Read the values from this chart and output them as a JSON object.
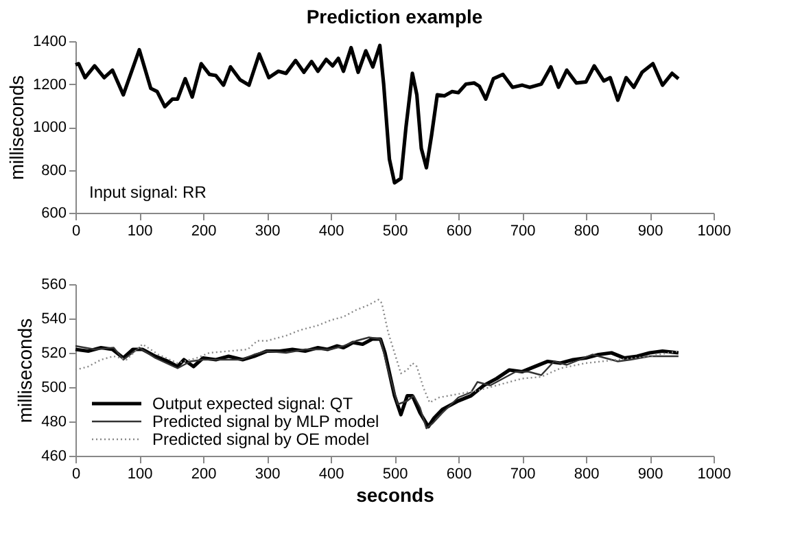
{
  "chart_data": [
    {
      "type": "line",
      "title": "Prediction example",
      "ylabel": "milliseconds",
      "annotations": [
        "Input signal: RR"
      ],
      "xlim": [
        0,
        1000
      ],
      "xticks": [
        0,
        100,
        200,
        300,
        400,
        500,
        600,
        700,
        800,
        900,
        1000
      ],
      "ylim": [
        600,
        1400
      ],
      "yticks": [
        600,
        800,
        1000,
        1200,
        1400
      ],
      "grid": false,
      "series": [
        {
          "color": "#000000",
          "line_style": "solid",
          "x": [
            0,
            5,
            15,
            30,
            45,
            58,
            75,
            100,
            118,
            128,
            140,
            152,
            160,
            172,
            183,
            197,
            210,
            220,
            232,
            243,
            258,
            272,
            288,
            303,
            318,
            330,
            345,
            358,
            370,
            380,
            393,
            403,
            412,
            420,
            432,
            443,
            455,
            466,
            477,
            483,
            492,
            500,
            510,
            518,
            528,
            535,
            542,
            550,
            558,
            567,
            578,
            590,
            600,
            612,
            625,
            633,
            643,
            655,
            670,
            685,
            700,
            712,
            730,
            745,
            757,
            770,
            785,
            800,
            813,
            828,
            838,
            850,
            863,
            875,
            888,
            905,
            920,
            935,
            945
          ],
          "values": [
            1290,
            1295,
            1230,
            1285,
            1230,
            1265,
            1150,
            1360,
            1180,
            1165,
            1095,
            1130,
            1130,
            1225,
            1140,
            1295,
            1245,
            1240,
            1195,
            1280,
            1220,
            1195,
            1340,
            1230,
            1260,
            1250,
            1310,
            1255,
            1305,
            1260,
            1315,
            1285,
            1320,
            1260,
            1370,
            1255,
            1355,
            1280,
            1380,
            1200,
            850,
            740,
            760,
            1000,
            1250,
            1150,
            900,
            810,
            960,
            1150,
            1145,
            1165,
            1160,
            1200,
            1205,
            1190,
            1130,
            1225,
            1245,
            1185,
            1195,
            1185,
            1200,
            1280,
            1185,
            1265,
            1205,
            1210,
            1285,
            1215,
            1230,
            1125,
            1230,
            1185,
            1255,
            1295,
            1195,
            1250,
            1225
          ]
        }
      ]
    },
    {
      "type": "line",
      "xlabel": "seconds",
      "ylabel": "milliseconds",
      "xlim": [
        0,
        1000
      ],
      "xticks": [
        0,
        100,
        200,
        300,
        400,
        500,
        600,
        700,
        800,
        900,
        1000
      ],
      "ylim": [
        460,
        560
      ],
      "yticks": [
        460,
        480,
        500,
        520,
        540,
        560
      ],
      "grid": false,
      "legend": "bottom left",
      "series": [
        {
          "name": "Output expected signal: QT",
          "color": "#000000",
          "line_style": "solid",
          "x": [
            0,
            20,
            40,
            58,
            75,
            90,
            105,
            125,
            145,
            160,
            170,
            185,
            200,
            220,
            240,
            262,
            280,
            300,
            320,
            340,
            360,
            380,
            395,
            410,
            420,
            435,
            450,
            465,
            478,
            485,
            500,
            510,
            520,
            528,
            540,
            553,
            562,
            575,
            600,
            620,
            640,
            660,
            680,
            700,
            720,
            740,
            760,
            780,
            800,
            820,
            840,
            860,
            880,
            900,
            920,
            945
          ],
          "values": [
            522,
            521,
            523,
            522,
            517,
            522,
            522,
            518,
            515,
            512,
            516,
            512,
            517,
            516,
            518,
            516,
            518,
            521,
            521,
            522,
            521,
            523,
            522,
            524,
            523,
            526,
            525,
            528,
            528,
            520,
            495,
            484,
            495,
            495,
            485,
            477,
            482,
            487,
            492,
            495,
            501,
            505,
            510,
            509,
            512,
            515,
            514,
            516,
            517,
            519,
            520,
            517,
            518,
            520,
            521,
            520
          ]
        },
        {
          "name": "Predicted signal by MLP model",
          "color": "#333333",
          "line_style": "solid",
          "x": [
            0,
            30,
            60,
            75,
            100,
            125,
            160,
            180,
            200,
            230,
            260,
            280,
            300,
            330,
            360,
            380,
            400,
            420,
            440,
            460,
            478,
            490,
            505,
            520,
            530,
            540,
            550,
            560,
            575,
            600,
            620,
            630,
            650,
            670,
            690,
            710,
            730,
            750,
            770,
            790,
            810,
            830,
            850,
            870,
            900,
            945
          ],
          "values": [
            524,
            522,
            523,
            516,
            523,
            517,
            511,
            515,
            516,
            516,
            516,
            519,
            521,
            520,
            522,
            522,
            522,
            524,
            527,
            529,
            528,
            510,
            490,
            492,
            495,
            488,
            476,
            479,
            485,
            494,
            497,
            503,
            501,
            505,
            509,
            509,
            507,
            515,
            513,
            516,
            519,
            517,
            515,
            516,
            518,
            518
          ]
        },
        {
          "name": "Predicted signal by OE model",
          "color": "#888888",
          "line_style": "dotted",
          "x": [
            0,
            20,
            40,
            60,
            80,
            105,
            130,
            160,
            190,
            210,
            240,
            270,
            285,
            300,
            330,
            350,
            380,
            400,
            420,
            440,
            460,
            475,
            480,
            490,
            500,
            510,
            520,
            528,
            535,
            545,
            555,
            570,
            600,
            630,
            650,
            680,
            700,
            730,
            760,
            800,
            850,
            900,
            945
          ],
          "values": [
            510,
            512,
            516,
            518,
            516,
            525,
            519,
            514,
            517,
            520,
            521,
            522,
            527,
            527,
            530,
            533,
            536,
            539,
            541,
            545,
            548,
            551,
            549,
            532,
            520,
            508,
            510,
            514,
            512,
            500,
            491,
            494,
            496,
            498,
            500,
            503,
            505,
            506,
            511,
            514,
            516,
            518,
            521
          ]
        }
      ]
    }
  ]
}
